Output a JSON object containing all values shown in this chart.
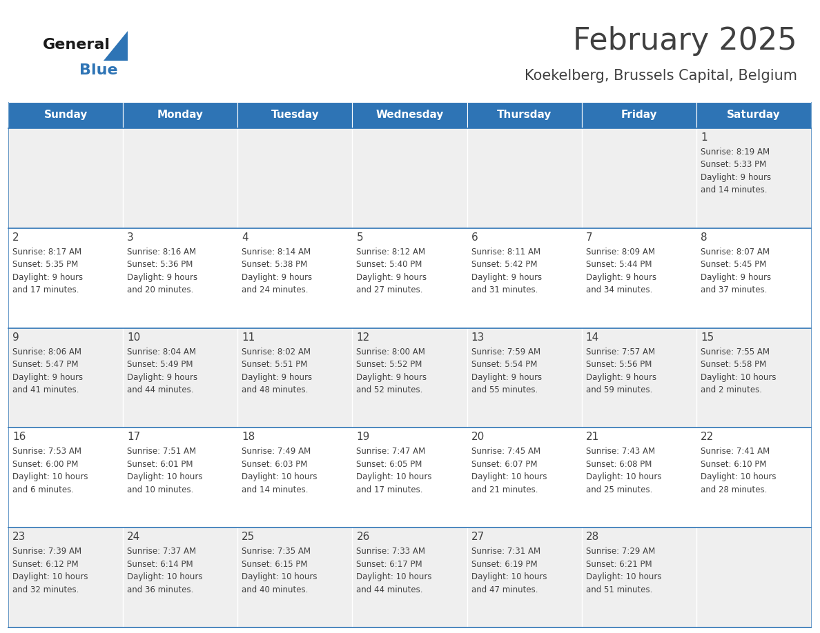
{
  "title": "February 2025",
  "subtitle": "Koekelberg, Brussels Capital, Belgium",
  "days_of_week": [
    "Sunday",
    "Monday",
    "Tuesday",
    "Wednesday",
    "Thursday",
    "Friday",
    "Saturday"
  ],
  "header_bg": "#2E74B5",
  "header_text": "#FFFFFF",
  "cell_bg_light": "#EFEFEF",
  "cell_bg_white": "#FFFFFF",
  "border_color": "#2E74B5",
  "text_color": "#404040",
  "title_color": "#404040",
  "calendar_data": [
    [
      "",
      "",
      "",
      "",
      "",
      "",
      "1\nSunrise: 8:19 AM\nSunset: 5:33 PM\nDaylight: 9 hours\nand 14 minutes."
    ],
    [
      "2\nSunrise: 8:17 AM\nSunset: 5:35 PM\nDaylight: 9 hours\nand 17 minutes.",
      "3\nSunrise: 8:16 AM\nSunset: 5:36 PM\nDaylight: 9 hours\nand 20 minutes.",
      "4\nSunrise: 8:14 AM\nSunset: 5:38 PM\nDaylight: 9 hours\nand 24 minutes.",
      "5\nSunrise: 8:12 AM\nSunset: 5:40 PM\nDaylight: 9 hours\nand 27 minutes.",
      "6\nSunrise: 8:11 AM\nSunset: 5:42 PM\nDaylight: 9 hours\nand 31 minutes.",
      "7\nSunrise: 8:09 AM\nSunset: 5:44 PM\nDaylight: 9 hours\nand 34 minutes.",
      "8\nSunrise: 8:07 AM\nSunset: 5:45 PM\nDaylight: 9 hours\nand 37 minutes."
    ],
    [
      "9\nSunrise: 8:06 AM\nSunset: 5:47 PM\nDaylight: 9 hours\nand 41 minutes.",
      "10\nSunrise: 8:04 AM\nSunset: 5:49 PM\nDaylight: 9 hours\nand 44 minutes.",
      "11\nSunrise: 8:02 AM\nSunset: 5:51 PM\nDaylight: 9 hours\nand 48 minutes.",
      "12\nSunrise: 8:00 AM\nSunset: 5:52 PM\nDaylight: 9 hours\nand 52 minutes.",
      "13\nSunrise: 7:59 AM\nSunset: 5:54 PM\nDaylight: 9 hours\nand 55 minutes.",
      "14\nSunrise: 7:57 AM\nSunset: 5:56 PM\nDaylight: 9 hours\nand 59 minutes.",
      "15\nSunrise: 7:55 AM\nSunset: 5:58 PM\nDaylight: 10 hours\nand 2 minutes."
    ],
    [
      "16\nSunrise: 7:53 AM\nSunset: 6:00 PM\nDaylight: 10 hours\nand 6 minutes.",
      "17\nSunrise: 7:51 AM\nSunset: 6:01 PM\nDaylight: 10 hours\nand 10 minutes.",
      "18\nSunrise: 7:49 AM\nSunset: 6:03 PM\nDaylight: 10 hours\nand 14 minutes.",
      "19\nSunrise: 7:47 AM\nSunset: 6:05 PM\nDaylight: 10 hours\nand 17 minutes.",
      "20\nSunrise: 7:45 AM\nSunset: 6:07 PM\nDaylight: 10 hours\nand 21 minutes.",
      "21\nSunrise: 7:43 AM\nSunset: 6:08 PM\nDaylight: 10 hours\nand 25 minutes.",
      "22\nSunrise: 7:41 AM\nSunset: 6:10 PM\nDaylight: 10 hours\nand 28 minutes."
    ],
    [
      "23\nSunrise: 7:39 AM\nSunset: 6:12 PM\nDaylight: 10 hours\nand 32 minutes.",
      "24\nSunrise: 7:37 AM\nSunset: 6:14 PM\nDaylight: 10 hours\nand 36 minutes.",
      "25\nSunrise: 7:35 AM\nSunset: 6:15 PM\nDaylight: 10 hours\nand 40 minutes.",
      "26\nSunrise: 7:33 AM\nSunset: 6:17 PM\nDaylight: 10 hours\nand 44 minutes.",
      "27\nSunrise: 7:31 AM\nSunset: 6:19 PM\nDaylight: 10 hours\nand 47 minutes.",
      "28\nSunrise: 7:29 AM\nSunset: 6:21 PM\nDaylight: 10 hours\nand 51 minutes.",
      ""
    ]
  ],
  "logo_text_general": "General",
  "logo_text_blue": "Blue",
  "logo_color_general": "#1a1a1a",
  "logo_color_blue": "#2E74B5",
  "fig_width": 11.88,
  "fig_height": 9.18,
  "dpi": 100
}
